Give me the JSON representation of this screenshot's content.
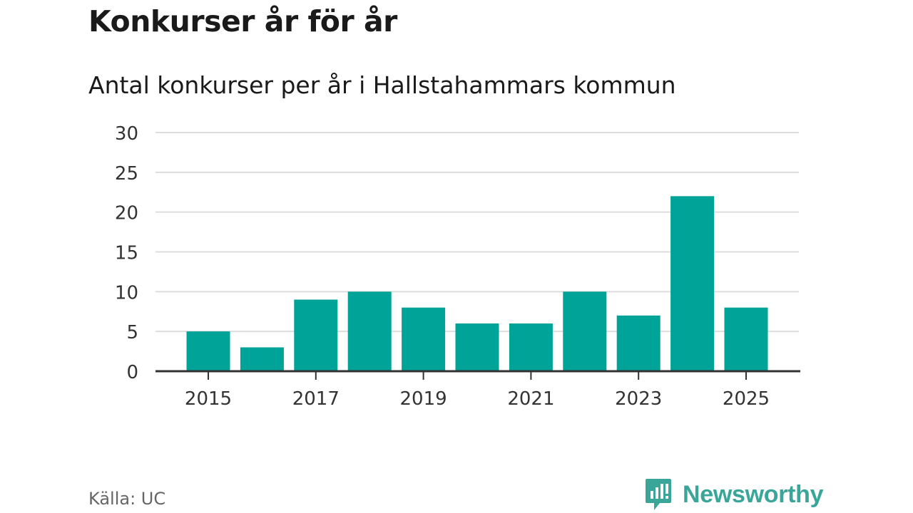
{
  "header": {
    "title": "Konkurser år för år",
    "subtitle": "Antal konkurser per år i Hallstahammars kommun"
  },
  "footer": {
    "source": "Källa: UC",
    "brand": "Newsworthy",
    "brand_icon": "chat-bar-chart-icon"
  },
  "colors": {
    "bar": "#00a398",
    "grid": "#dddddd",
    "axis": "#333333",
    "brand": "#3aa599"
  },
  "chart_data": {
    "type": "bar",
    "title": "Konkurser år för år",
    "subtitle": "Antal konkurser per år i Hallstahammars kommun",
    "xlabel": "",
    "ylabel": "",
    "categories": [
      2015,
      2016,
      2017,
      2018,
      2019,
      2020,
      2021,
      2022,
      2023,
      2024,
      2025
    ],
    "values": [
      5,
      3,
      9,
      10,
      8,
      6,
      6,
      10,
      7,
      22,
      8
    ],
    "ylim": [
      0,
      30
    ],
    "yticks": [
      0,
      5,
      10,
      15,
      20,
      25,
      30
    ],
    "xtick_labels": [
      "2015",
      "2017",
      "2019",
      "2021",
      "2023",
      "2025"
    ],
    "grid": true,
    "legend": "none"
  }
}
